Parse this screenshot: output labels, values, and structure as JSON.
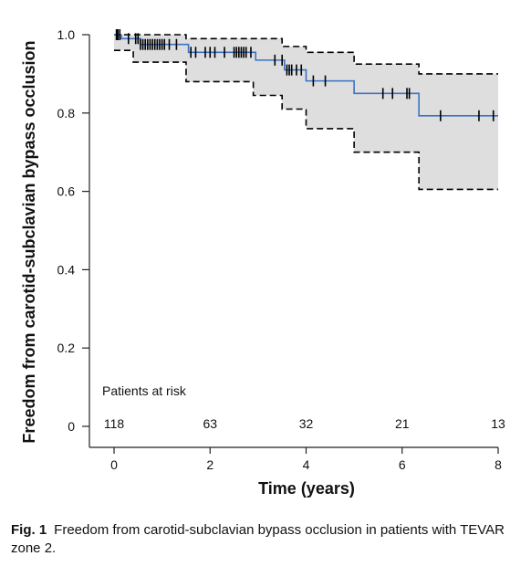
{
  "chart_data": {
    "type": "line",
    "ylabel": "Freedom from carotid-subclavian bypass occlusion",
    "xlabel": "Time (years)",
    "xlim": [
      0,
      8
    ],
    "ylim": [
      0,
      1.0
    ],
    "xticks": [
      "0",
      "2",
      "4",
      "6",
      "8"
    ],
    "yticks": [
      "0",
      "0.2",
      "0.4",
      "0.6",
      "0.8",
      "1.0"
    ],
    "grid": false,
    "series": [
      {
        "role": "estimate",
        "color": "#3a73c4",
        "steps": [
          [
            0,
            1.0
          ],
          [
            0.15,
            0.99
          ],
          [
            0.55,
            0.975
          ],
          [
            1.55,
            0.955
          ],
          [
            2.95,
            0.935
          ],
          [
            3.55,
            0.91
          ],
          [
            4.0,
            0.882
          ],
          [
            5.0,
            0.85
          ],
          [
            6.35,
            0.793
          ],
          [
            8.0,
            0.793
          ]
        ]
      },
      {
        "role": "upper-confidence-limit",
        "color": "#000000",
        "style": "dashed",
        "steps": [
          [
            0,
            1.0
          ],
          [
            1.5,
            0.99
          ],
          [
            3.5,
            0.97
          ],
          [
            4.0,
            0.955
          ],
          [
            5.0,
            0.925
          ],
          [
            6.35,
            0.9
          ],
          [
            8.0,
            0.9
          ]
        ]
      },
      {
        "role": "lower-confidence-limit",
        "color": "#000000",
        "style": "dashed",
        "steps": [
          [
            0,
            0.96
          ],
          [
            0.4,
            0.93
          ],
          [
            1.5,
            0.88
          ],
          [
            2.9,
            0.845
          ],
          [
            3.5,
            0.81
          ],
          [
            4.0,
            0.76
          ],
          [
            5.0,
            0.7
          ],
          [
            6.35,
            0.605
          ],
          [
            8.0,
            0.605
          ]
        ]
      }
    ],
    "censor_marks": [
      0.05,
      0.08,
      0.12,
      0.3,
      0.45,
      0.5,
      0.55,
      0.6,
      0.65,
      0.7,
      0.75,
      0.8,
      0.85,
      0.9,
      0.95,
      1.0,
      1.05,
      1.15,
      1.3,
      1.6,
      1.7,
      1.9,
      2.0,
      2.1,
      2.3,
      2.5,
      2.55,
      2.6,
      2.65,
      2.7,
      2.75,
      2.85,
      3.35,
      3.5,
      3.6,
      3.65,
      3.7,
      3.8,
      3.9,
      4.15,
      4.4,
      5.6,
      5.8,
      6.1,
      6.15,
      6.8,
      7.6,
      7.9
    ],
    "patients_at_risk": {
      "title": "Patients at risk",
      "x": [
        0,
        2,
        4,
        6,
        8
      ],
      "values": [
        "118",
        "63",
        "32",
        "21",
        "13"
      ]
    }
  },
  "caption": {
    "label": "Fig. 1",
    "text": "Freedom from carotid-subclavian bypass occlusion in patients with TEVAR zone 2."
  }
}
